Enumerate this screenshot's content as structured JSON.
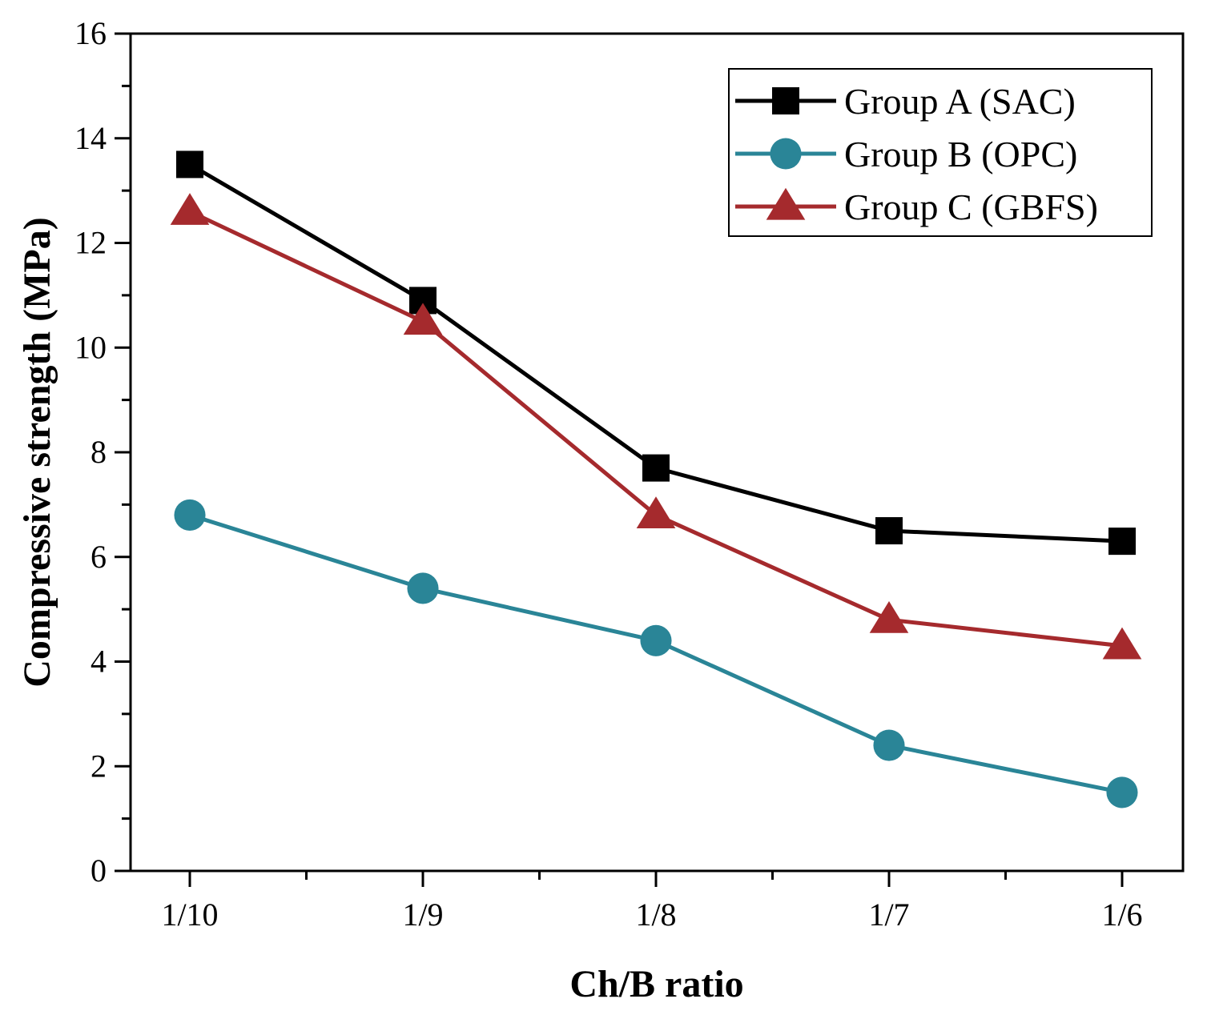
{
  "chart_data": {
    "type": "line",
    "title": "",
    "xlabel": "Ch/B ratio",
    "ylabel": "Compressive strength (MPa)",
    "categories": [
      "1/10",
      "1/9",
      "1/8",
      "1/7",
      "1/6"
    ],
    "ylim": [
      0,
      16
    ],
    "yticks": [
      "0",
      "2",
      "4",
      "6",
      "8",
      "10",
      "12",
      "14",
      "16"
    ],
    "legend_position": "top-right",
    "grid": false,
    "series": [
      {
        "name": "Group A (SAC)",
        "values": [
          13.5,
          10.9,
          7.7,
          6.5,
          6.3
        ],
        "color": "#000000",
        "marker": "square"
      },
      {
        "name": "Group B (OPC)",
        "values": [
          6.8,
          5.4,
          4.4,
          2.4,
          1.5
        ],
        "color": "#2a8597",
        "marker": "circle"
      },
      {
        "name": "Group C (GBFS)",
        "values": [
          12.6,
          10.5,
          6.8,
          4.8,
          4.3
        ],
        "color": "#a52a2d",
        "marker": "triangle"
      }
    ]
  }
}
